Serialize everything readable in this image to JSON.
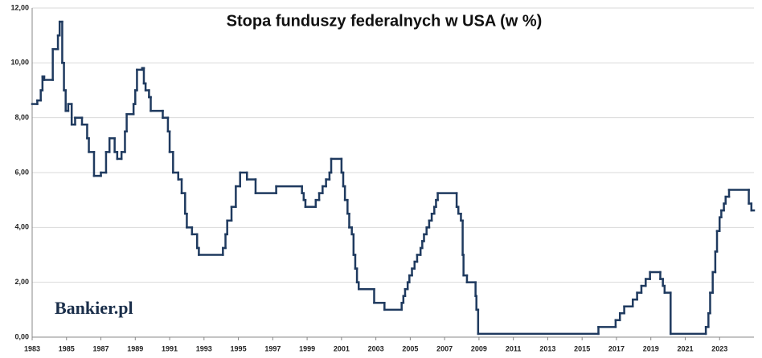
{
  "chart_data": {
    "type": "line",
    "step": true,
    "title": "Stopa funduszy federalnych w USA (w %)",
    "watermark": "Bankier.pl",
    "color": "#1f3a5f",
    "grid": true,
    "xlim": [
      1983,
      2025
    ],
    "xticks": [
      1983,
      1985,
      1987,
      1989,
      1991,
      1993,
      1995,
      1997,
      1999,
      2001,
      2003,
      2005,
      2007,
      2009,
      2011,
      2013,
      2015,
      2017,
      2019,
      2021,
      2023
    ],
    "ylim": [
      0,
      12
    ],
    "yticks": [
      {
        "value": 0,
        "label": "0,00"
      },
      {
        "value": 2,
        "label": "2,00"
      },
      {
        "value": 4,
        "label": "4,00"
      },
      {
        "value": 6,
        "label": "6,00"
      },
      {
        "value": 8,
        "label": "8,00"
      },
      {
        "value": 10,
        "label": "10,00"
      },
      {
        "value": 12,
        "label": "12,00"
      }
    ],
    "x": [
      1983.0,
      1983.3,
      1983.5,
      1983.6,
      1983.7,
      1984.2,
      1984.5,
      1984.6,
      1984.75,
      1984.85,
      1984.95,
      1985.1,
      1985.3,
      1985.5,
      1985.9,
      1986.2,
      1986.3,
      1986.6,
      1987.0,
      1987.3,
      1987.5,
      1987.8,
      1987.95,
      1988.2,
      1988.4,
      1988.5,
      1988.9,
      1989.0,
      1989.1,
      1989.4,
      1989.5,
      1989.6,
      1989.8,
      1989.9,
      1990.6,
      1990.9,
      1991.0,
      1991.2,
      1991.5,
      1991.7,
      1991.9,
      1992.0,
      1992.3,
      1992.6,
      1992.7,
      1994.1,
      1994.25,
      1994.35,
      1994.6,
      1994.85,
      1995.1,
      1995.5,
      1996.0,
      1997.2,
      1998.7,
      1998.8,
      1998.9,
      1999.5,
      1999.7,
      1999.9,
      2000.1,
      2000.3,
      2000.4,
      2001.0,
      2001.1,
      2001.2,
      2001.35,
      2001.45,
      2001.6,
      2001.7,
      2001.8,
      2001.9,
      2002.0,
      2002.9,
      2003.5,
      2004.5,
      2004.6,
      2004.7,
      2004.85,
      2004.95,
      2005.1,
      2005.25,
      2005.4,
      2005.6,
      2005.7,
      2005.8,
      2005.95,
      2006.1,
      2006.25,
      2006.4,
      2006.5,
      2006.6,
      2007.7,
      2007.8,
      2007.95,
      2008.05,
      2008.1,
      2008.3,
      2008.8,
      2008.85,
      2008.95,
      2015.95,
      2016.95,
      2017.2,
      2017.45,
      2017.95,
      2018.2,
      2018.45,
      2018.7,
      2018.95,
      2019.55,
      2019.7,
      2019.8,
      2020.15,
      2022.2,
      2022.35,
      2022.45,
      2022.6,
      2022.75,
      2022.85,
      2023.0,
      2023.1,
      2023.25,
      2023.35,
      2023.55,
      2024.7,
      2024.85
    ],
    "series": [
      {
        "name": "Stopa funduszy federalnych",
        "color": "#1f3a5f",
        "values": [
          8.5,
          8.63,
          9.0,
          9.5,
          9.38,
          10.5,
          11.0,
          11.5,
          10.0,
          9.0,
          8.25,
          8.5,
          7.75,
          8.0,
          7.75,
          7.25,
          6.75,
          5.88,
          6.0,
          6.75,
          7.25,
          6.75,
          6.5,
          6.75,
          7.5,
          8.13,
          8.5,
          9.0,
          9.75,
          9.81,
          9.25,
          9.0,
          8.75,
          8.25,
          8.0,
          7.5,
          6.75,
          6.0,
          5.75,
          5.25,
          4.5,
          4.0,
          3.75,
          3.25,
          3.0,
          3.25,
          3.75,
          4.25,
          4.75,
          5.5,
          6.0,
          5.75,
          5.25,
          5.5,
          5.25,
          5.0,
          4.75,
          5.0,
          5.25,
          5.5,
          5.75,
          6.0,
          6.5,
          6.0,
          5.5,
          5.0,
          4.5,
          4.0,
          3.75,
          3.0,
          2.5,
          2.0,
          1.75,
          1.25,
          1.0,
          1.25,
          1.5,
          1.75,
          2.0,
          2.25,
          2.5,
          2.75,
          3.0,
          3.25,
          3.5,
          3.75,
          4.0,
          4.25,
          4.5,
          4.75,
          5.0,
          5.25,
          4.75,
          4.5,
          4.25,
          3.0,
          2.25,
          2.0,
          1.5,
          1.0,
          0.12,
          0.37,
          0.62,
          0.87,
          1.12,
          1.37,
          1.62,
          1.87,
          2.12,
          2.37,
          2.12,
          1.87,
          1.62,
          0.12,
          0.37,
          0.87,
          1.62,
          2.37,
          3.12,
          3.87,
          4.37,
          4.62,
          4.87,
          5.12,
          5.37,
          4.87,
          4.62
        ]
      }
    ]
  }
}
